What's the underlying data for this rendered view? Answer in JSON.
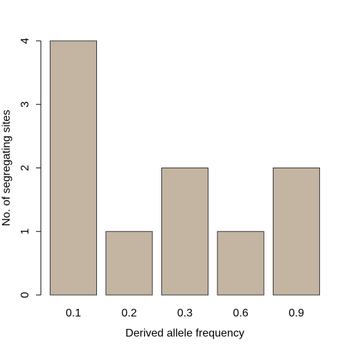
{
  "chart_data": {
    "type": "bar",
    "categories": [
      "0.1",
      "0.2",
      "0.3",
      "0.6",
      "0.9"
    ],
    "values": [
      4,
      1,
      2,
      1,
      2
    ],
    "title": "",
    "xlabel": "Derived allele frequency",
    "ylabel": "No. of segregating sites",
    "ylim": [
      0,
      4
    ],
    "yticks": [
      0,
      1,
      2,
      3,
      4
    ],
    "grid": false,
    "legend": "none",
    "bar_color": "#c4b4a2",
    "bar_border_color": "#333333"
  }
}
